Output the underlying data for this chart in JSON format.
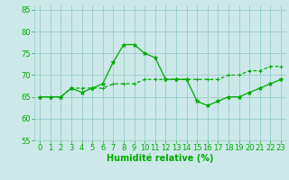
{
  "x": [
    0,
    1,
    2,
    3,
    4,
    5,
    6,
    7,
    8,
    9,
    10,
    11,
    12,
    13,
    14,
    15,
    16,
    17,
    18,
    19,
    20,
    21,
    22,
    23
  ],
  "line1_y": [
    65,
    65,
    65,
    67,
    66,
    67,
    68,
    73,
    77,
    77,
    75,
    74,
    69,
    69,
    69,
    64,
    63,
    64,
    65,
    65,
    66,
    67,
    68,
    69
  ],
  "line2_y": [
    65,
    65,
    65,
    67,
    67,
    67,
    67,
    68,
    68,
    68,
    69,
    69,
    69,
    69,
    69,
    69,
    69,
    69,
    70,
    70,
    71,
    71,
    72,
    72
  ],
  "line_color": "#00aa00",
  "bg_color": "#cce8e8",
  "grid_color": "#99cccc",
  "xlabel": "Humidité relative (%)",
  "ylim": [
    55,
    86
  ],
  "xlim": [
    -0.5,
    23.5
  ],
  "yticks": [
    55,
    60,
    65,
    70,
    75,
    80,
    85
  ],
  "xticks": [
    0,
    1,
    2,
    3,
    4,
    5,
    6,
    7,
    8,
    9,
    10,
    11,
    12,
    13,
    14,
    15,
    16,
    17,
    18,
    19,
    20,
    21,
    22,
    23
  ],
  "xlabel_fontsize": 7.0,
  "tick_fontsize": 6.0,
  "linewidth": 0.9,
  "marker_size": 3.5
}
